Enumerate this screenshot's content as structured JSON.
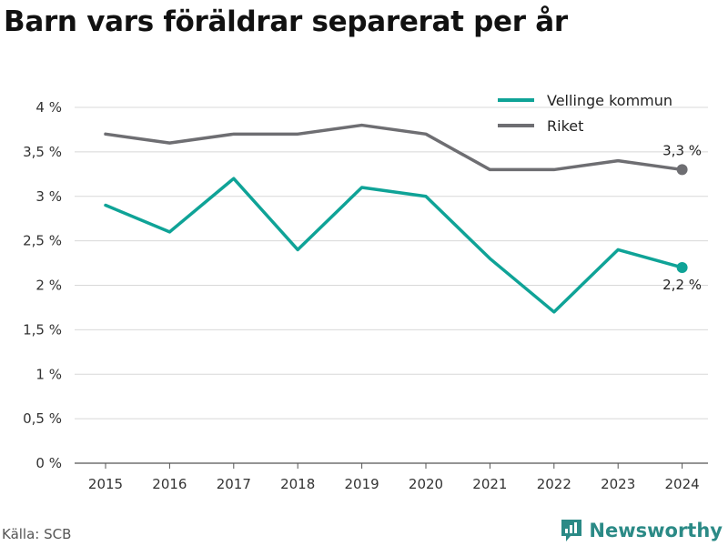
{
  "title": "Barn vars föräldrar separerat per år",
  "source": "Källa: SCB",
  "brand": {
    "name": "Newsworthy",
    "icon": "newsworthy-logo-icon",
    "color": "#2b8a86"
  },
  "chart_data": {
    "type": "line",
    "x": [
      "2015",
      "2016",
      "2017",
      "2018",
      "2019",
      "2020",
      "2021",
      "2022",
      "2023",
      "2024"
    ],
    "ylim": [
      0,
      4
    ],
    "yticks": [
      0,
      0.5,
      1,
      1.5,
      2,
      2.5,
      3,
      3.5,
      4
    ],
    "ytick_labels": [
      "0 %",
      "0,5 %",
      "1 %",
      "1,5 %",
      "2 %",
      "2,5 %",
      "3 %",
      "3,5 %",
      "4 %"
    ],
    "grid": "horizontal",
    "legend_position": "top-right",
    "series": [
      {
        "name": "Vellinge kommun",
        "color": "#0fa397",
        "values": [
          2.9,
          2.6,
          3.2,
          2.4,
          3.1,
          3.0,
          2.3,
          1.7,
          2.4,
          2.2
        ],
        "end_label": "2,2 %"
      },
      {
        "name": "Riket",
        "color": "#6e6e72",
        "values": [
          3.7,
          3.6,
          3.7,
          3.7,
          3.8,
          3.7,
          3.3,
          3.3,
          3.4,
          3.3
        ],
        "end_label": "3,3 %"
      }
    ]
  }
}
